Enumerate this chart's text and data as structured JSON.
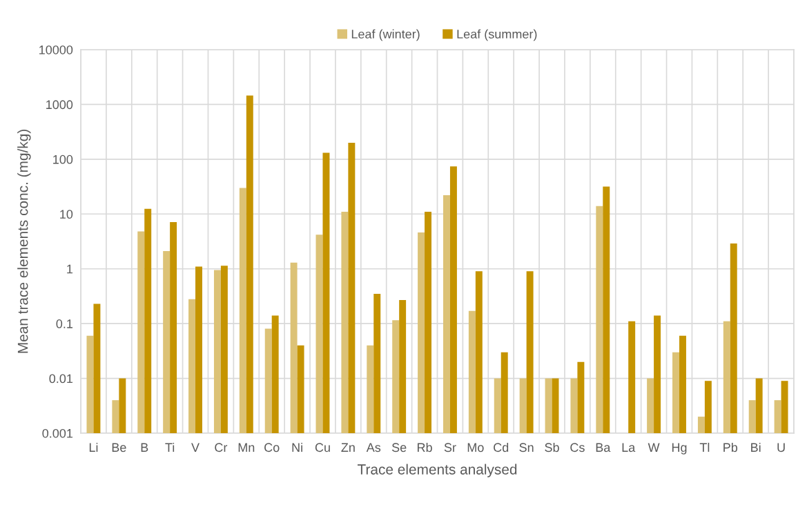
{
  "chart_data": {
    "type": "bar",
    "xlabel": "Trace elements analysed",
    "ylabel": "Mean trace elements conc. (mg/kg)",
    "categories": [
      "Li",
      "Be",
      "B",
      "Ti",
      "V",
      "Cr",
      "Mn",
      "Co",
      "Ni",
      "Cu",
      "Zn",
      "As",
      "Se",
      "Rb",
      "Sr",
      "Mo",
      "Cd",
      "Sn",
      "Sb",
      "Cs",
      "Ba",
      "La",
      "W",
      "Hg",
      "Tl",
      "Pb",
      "Bi",
      "U"
    ],
    "series": [
      {
        "name": "Leaf (winter)",
        "color": "#dcc276",
        "values": [
          0.06,
          0.004,
          4.8,
          2.1,
          0.28,
          0.95,
          30,
          0.081,
          1.3,
          4.2,
          11,
          0.04,
          0.115,
          4.6,
          22,
          0.17,
          0.01,
          0.01,
          0.01,
          0.01,
          14,
          null,
          0.01,
          0.03,
          0.002,
          0.11,
          0.004,
          0.004
        ]
      },
      {
        "name": "Leaf (summer)",
        "color": "#c59400",
        "values": [
          0.23,
          0.01,
          12.4,
          7.1,
          1.1,
          1.14,
          1450,
          0.14,
          0.04,
          131,
          200,
          0.35,
          0.27,
          11,
          74,
          0.9,
          0.03,
          0.9,
          0.01,
          0.02,
          31.6,
          0.11,
          0.14,
          0.06,
          0.009,
          2.9,
          0.01,
          0.009
        ]
      }
    ],
    "log": true,
    "ylim": [
      0.001,
      10000
    ],
    "yticks": [
      0.001,
      0.01,
      0.1,
      1,
      10,
      100,
      1000,
      10000
    ],
    "grid": true,
    "legend": "top"
  }
}
